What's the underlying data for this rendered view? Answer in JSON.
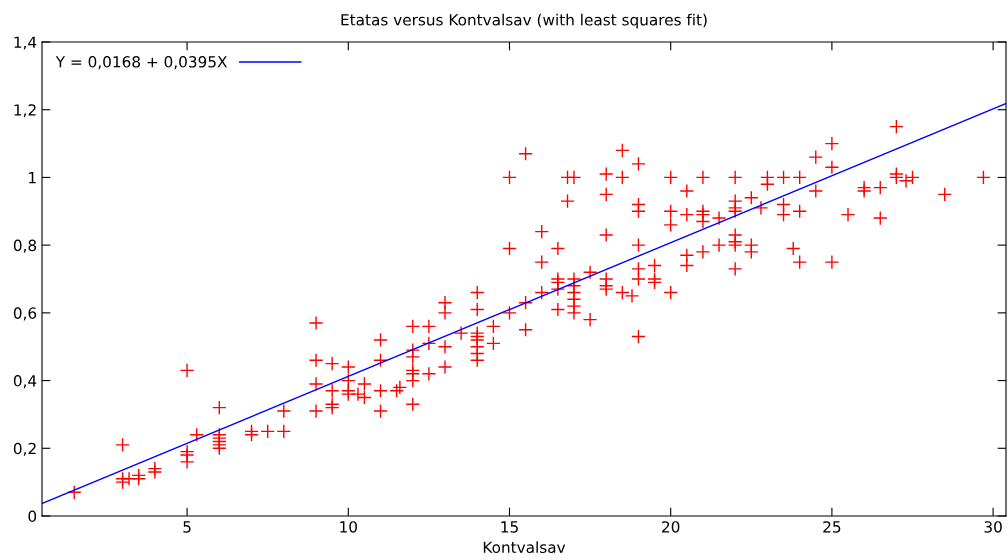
{
  "chart_data": {
    "type": "scatter",
    "title": "Etatas versus Kontvalsav (with least squares fit)",
    "xlabel": "Kontvalsav",
    "xlim": [
      0.5,
      30.4
    ],
    "ylim": [
      0,
      1.4
    ],
    "xticks": [
      5,
      10,
      15,
      20,
      25,
      30
    ],
    "yticks": [
      0,
      {
        "value": 0.2,
        "label": "0,2"
      },
      {
        "value": 0.4,
        "label": "0,4"
      },
      {
        "value": 0.6,
        "label": "0,6"
      },
      {
        "value": 0.8,
        "label": "0,8"
      },
      1,
      {
        "value": 1.2,
        "label": "1,2"
      },
      {
        "value": 1.4,
        "label": "1,4"
      }
    ],
    "grid": false,
    "legend": "top left",
    "series": [
      {
        "color": "#ff0000",
        "marker": "cross",
        "x": [
          1.5,
          3,
          3,
          3,
          3.2,
          3.5,
          3.5,
          4,
          4,
          5,
          5,
          5,
          5,
          5.3,
          6,
          6,
          6,
          6,
          6,
          6,
          7,
          7,
          7.5,
          8,
          8,
          9,
          9,
          9,
          9,
          9.5,
          9.5,
          9.5,
          9.5,
          10,
          10,
          10,
          10,
          10.3,
          10.5,
          10.5,
          11,
          11,
          11,
          11,
          11.5,
          11.6,
          12,
          12,
          12,
          12,
          12,
          12,
          12,
          12.5,
          12.5,
          12.5,
          13,
          13,
          13,
          13,
          13.5,
          14,
          14,
          14,
          14,
          14,
          14,
          14,
          14,
          14.5,
          14.5,
          15,
          15,
          15,
          15.5,
          15.5,
          15.5,
          16,
          16,
          16,
          16.5,
          16.5,
          16.5,
          16.5,
          16.5,
          16.8,
          16.8,
          17,
          17,
          17,
          17,
          17,
          17,
          17,
          17.5,
          17.5,
          18,
          18,
          18,
          18,
          18,
          18,
          18.5,
          18.5,
          18.5,
          18.8,
          19,
          19,
          19,
          19,
          19,
          19,
          19,
          19.5,
          19.5,
          19.5,
          20,
          20,
          20,
          20,
          20.5,
          20.5,
          20.5,
          20.5,
          21,
          21,
          21,
          21,
          21,
          21.5,
          21.5,
          22,
          22,
          22,
          22,
          22,
          22,
          22,
          22,
          22.5,
          22.5,
          22.5,
          22.8,
          23,
          23,
          23.5,
          23.5,
          23.5,
          23.8,
          24,
          24,
          24,
          24.5,
          24.5,
          25,
          25,
          25,
          25.5,
          26,
          26,
          26.5,
          26.5,
          27,
          27,
          27,
          27.3,
          27.5,
          28.5,
          29.7
        ],
        "values": [
          0.07,
          0.21,
          0.1,
          0.11,
          0.11,
          0.12,
          0.11,
          0.14,
          0.13,
          0.43,
          0.19,
          0.18,
          0.16,
          0.24,
          0.32,
          0.24,
          0.23,
          0.22,
          0.21,
          0.2,
          0.25,
          0.24,
          0.25,
          0.31,
          0.25,
          0.57,
          0.46,
          0.39,
          0.31,
          0.45,
          0.37,
          0.33,
          0.32,
          0.44,
          0.4,
          0.37,
          0.36,
          0.36,
          0.39,
          0.35,
          0.52,
          0.46,
          0.37,
          0.31,
          0.37,
          0.38,
          0.56,
          0.49,
          0.47,
          0.43,
          0.42,
          0.4,
          0.33,
          0.56,
          0.51,
          0.42,
          0.63,
          0.6,
          0.5,
          0.44,
          0.54,
          0.66,
          0.61,
          0.54,
          0.53,
          0.52,
          0.5,
          0.48,
          0.46,
          0.56,
          0.51,
          1.0,
          0.79,
          0.6,
          1.07,
          0.63,
          0.55,
          0.84,
          0.75,
          0.66,
          0.79,
          0.7,
          0.69,
          0.67,
          0.61,
          0.93,
          1.0,
          1.0,
          0.7,
          0.68,
          0.66,
          0.64,
          0.62,
          0.6,
          0.72,
          0.58,
          1.01,
          0.95,
          0.83,
          0.7,
          0.68,
          0.67,
          1.08,
          1.0,
          0.66,
          0.65,
          1.04,
          0.92,
          0.9,
          0.8,
          0.73,
          0.7,
          0.53,
          0.74,
          0.7,
          0.69,
          1.0,
          0.9,
          0.86,
          0.66,
          0.96,
          0.89,
          0.77,
          0.74,
          1.0,
          0.9,
          0.89,
          0.87,
          0.78,
          0.88,
          0.8,
          1.0,
          0.93,
          0.91,
          0.9,
          0.83,
          0.81,
          0.8,
          0.73,
          0.94,
          0.8,
          0.78,
          0.91,
          1.0,
          0.98,
          1.0,
          0.92,
          0.89,
          0.79,
          1.0,
          0.9,
          0.75,
          1.06,
          0.96,
          1.1,
          1.03,
          0.75,
          0.89,
          0.97,
          0.96,
          0.97,
          0.88,
          1.15,
          1.01,
          1.0,
          0.99,
          1.0,
          0.95,
          1.0
        ]
      },
      {
        "type": "line",
        "name": "Y = 0,0168 + 0,0395X",
        "color": "#0000ff",
        "marker": "none",
        "line_style": "solid",
        "x": [
          0.5,
          30.4
        ],
        "values": [
          0.037,
          1.218
        ]
      }
    ]
  }
}
